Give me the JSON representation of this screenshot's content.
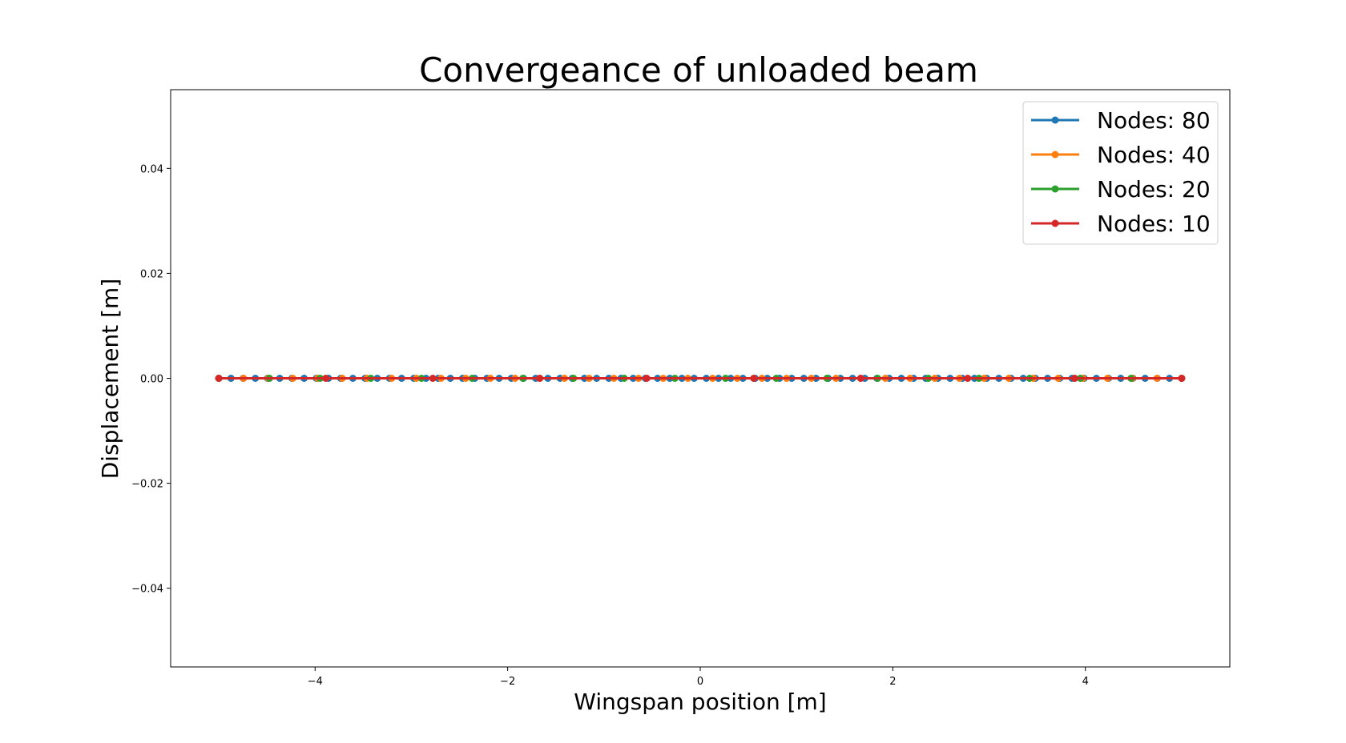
{
  "chart_data": {
    "type": "line",
    "title": "Convergeance of unloaded beam",
    "xlabel": "Wingspan position [m]",
    "ylabel": "Displacement [m]",
    "xlim": [
      -5.5,
      5.5
    ],
    "ylim": [
      -0.055,
      0.055
    ],
    "xticks": [
      -4,
      -2,
      0,
      2,
      4
    ],
    "xtick_labels": [
      "−4",
      "−2",
      "0",
      "2",
      "4"
    ],
    "yticks": [
      0.04,
      0.02,
      0.0,
      -0.02,
      -0.04
    ],
    "ytick_labels": [
      "0.04",
      "0.02",
      "0.00",
      "−0.02",
      "−0.04"
    ],
    "grid": false,
    "legend_position": "top-right",
    "x_range": [
      -5,
      5
    ],
    "series": [
      {
        "name": "Nodes: 80",
        "nodes": 80,
        "color": "#1f77b4",
        "value": 0.0
      },
      {
        "name": "Nodes: 40",
        "nodes": 40,
        "color": "#ff7f0e",
        "value": 0.0
      },
      {
        "name": "Nodes: 20",
        "nodes": 20,
        "color": "#2ca02c",
        "value": 0.0
      },
      {
        "name": "Nodes: 10",
        "nodes": 10,
        "color": "#d62728",
        "value": 0.0
      }
    ]
  }
}
